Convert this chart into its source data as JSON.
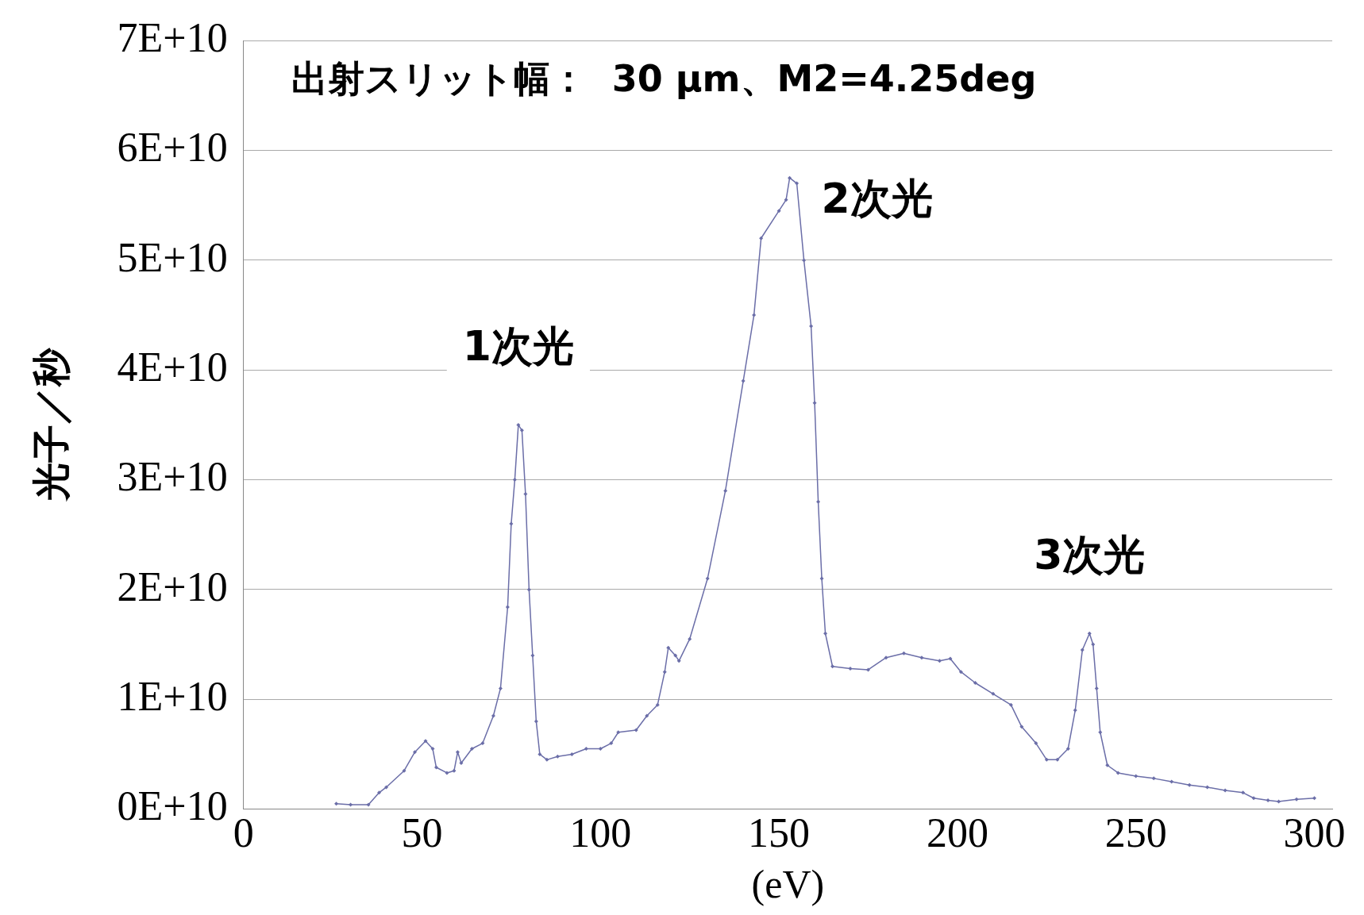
{
  "chart_data": {
    "type": "line",
    "xlabel": "(eV)",
    "ylabel": "光子／秒",
    "annotations": [
      "出射スリット幅：  30 μm、M2=4.25deg",
      {
        "text": "1次光",
        "x": 77,
        "y": 35000000000
      },
      {
        "text": "2次光",
        "x": 153,
        "y": 57500000000
      },
      {
        "text": "3次光",
        "x": 237,
        "y": 16000000000
      }
    ],
    "x": [
      26,
      30,
      35,
      38,
      40,
      45,
      48,
      51,
      53,
      54,
      57,
      59,
      60,
      61,
      64,
      67,
      70,
      72,
      74,
      75,
      76,
      77,
      78,
      79,
      80,
      81,
      82,
      83,
      85,
      88,
      92,
      96,
      100,
      103,
      105,
      110,
      113,
      116,
      118,
      119,
      121,
      122,
      125,
      130,
      135,
      140,
      143,
      145,
      150,
      152,
      153,
      155,
      157,
      159,
      160,
      161,
      162,
      163,
      165,
      170,
      175,
      180,
      185,
      190,
      195,
      198,
      201,
      205,
      210,
      215,
      218,
      222,
      225,
      228,
      231,
      233,
      235,
      237,
      238,
      239,
      240,
      242,
      245,
      250,
      255,
      260,
      265,
      270,
      275,
      280,
      283,
      287,
      290,
      295,
      300
    ],
    "series": [
      {
        "color": "#6b6ea8",
        "values": [
          500000000,
          400000000,
          400000000,
          1500000000,
          2000000000,
          3500000000,
          5200000000,
          6200000000,
          5500000000,
          3800000000,
          3300000000,
          3500000000,
          5200000000,
          4200000000,
          5500000000,
          6000000000,
          8500000000,
          11000000000,
          18400000000,
          26000000000,
          30000000000,
          35000000000,
          34500000000,
          28700000000,
          20000000000,
          14000000000,
          8000000000,
          5000000000,
          4500000000,
          4800000000,
          5000000000,
          5500000000,
          5500000000,
          6000000000,
          7000000000,
          7200000000,
          8500000000,
          9500000000,
          12500000000,
          14700000000,
          14000000000,
          13500000000,
          15500000000,
          21000000000,
          29000000000,
          39000000000,
          45000000000,
          52000000000,
          54500000000,
          55500000000,
          57500000000,
          57000000000,
          50000000000,
          44000000000,
          37000000000,
          28000000000,
          21000000000,
          16000000000,
          13000000000,
          12800000000,
          12700000000,
          13800000000,
          14200000000,
          13800000000,
          13500000000,
          13700000000,
          12500000000,
          11500000000,
          10500000000,
          9500000000,
          7500000000,
          6000000000,
          4500000000,
          4500000000,
          5500000000,
          9000000000,
          14500000000,
          16000000000,
          15000000000,
          11000000000,
          7000000000,
          4000000000,
          3300000000,
          3000000000,
          2800000000,
          2500000000,
          2200000000,
          2000000000,
          1700000000,
          1500000000,
          1000000000,
          800000000,
          700000000,
          900000000,
          1000000000
        ]
      }
    ],
    "xlim": [
      0,
      305
    ],
    "xticks": [
      0,
      50,
      100,
      150,
      200,
      250,
      300
    ],
    "ylim": [
      0,
      70000000000
    ],
    "yticks": [
      {
        "value": 0,
        "label": "0E+10"
      },
      {
        "value": 10000000000,
        "label": "1E+10"
      },
      {
        "value": 20000000000,
        "label": "2E+10"
      },
      {
        "value": 30000000000,
        "label": "3E+10"
      },
      {
        "value": 40000000000,
        "label": "4E+10"
      },
      {
        "value": 50000000000,
        "label": "5E+10"
      },
      {
        "value": 60000000000,
        "label": "6E+10"
      },
      {
        "value": 70000000000,
        "label": "7E+10"
      }
    ],
    "grid": "y",
    "legend": false,
    "marker": "diamond",
    "line_style": "solid"
  }
}
